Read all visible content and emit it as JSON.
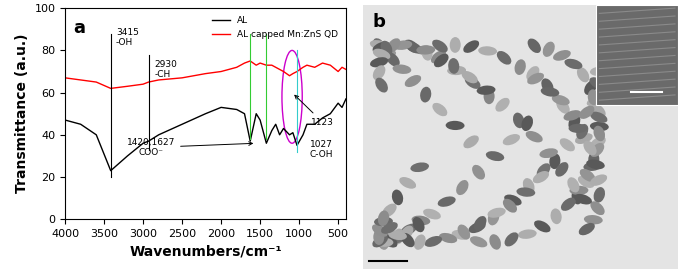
{
  "chart_data": {
    "type": "line",
    "panel_label": "a",
    "x_label": "Wavenumbers/cm⁻¹",
    "y_label": "Transmittance (a.u.)",
    "x": [
      4000,
      3800,
      3600,
      3415,
      3200,
      3000,
      2930,
      2800,
      2500,
      2200,
      2000,
      1800,
      1700,
      1627,
      1550,
      1500,
      1420,
      1350,
      1300,
      1250,
      1200,
      1123,
      1080,
      1027,
      950,
      900,
      800,
      700,
      600,
      500,
      450,
      400
    ],
    "series": [
      {
        "name": "AL",
        "color": "#000000",
        "values": [
          47,
          45,
          40,
          23,
          30,
          36,
          37,
          40,
          45,
          50,
          53,
          52,
          50,
          37,
          50,
          47,
          36,
          42,
          45,
          40,
          43,
          40,
          41,
          35,
          40,
          45,
          45,
          48,
          50,
          55,
          53,
          57
        ]
      },
      {
        "name": "AL capped Mn:ZnS QD",
        "color": "#ff0000",
        "values": [
          67,
          66,
          65,
          62,
          63,
          64,
          65,
          66,
          67,
          69,
          70,
          72,
          74,
          75,
          73,
          74,
          73,
          73,
          72,
          71,
          70,
          68,
          69,
          70,
          72,
          73,
          72,
          74,
          73,
          70,
          72,
          71
        ]
      }
    ],
    "annotations": [
      {
        "text": "3415\n-OH",
        "x": [
          3415
        ]
      },
      {
        "text": "2930\n-CH",
        "x": [
          2930
        ]
      },
      {
        "text": "1420,1627\nCOO⁻",
        "x": [
          1420,
          1627
        ]
      },
      {
        "text": "1123",
        "x": [
          1123
        ]
      },
      {
        "text": "1027\nC-OH",
        "x": [
          1027
        ]
      }
    ],
    "xlim": [
      4000,
      400
    ],
    "xticks": [
      4000,
      3500,
      3000,
      2500,
      2000,
      1500,
      1000,
      500
    ],
    "ylim": [
      0,
      100
    ],
    "yticks": [
      0,
      20,
      40,
      60,
      80,
      100
    ],
    "legend": "upper right"
  },
  "image": {
    "panel_label": "b"
  }
}
